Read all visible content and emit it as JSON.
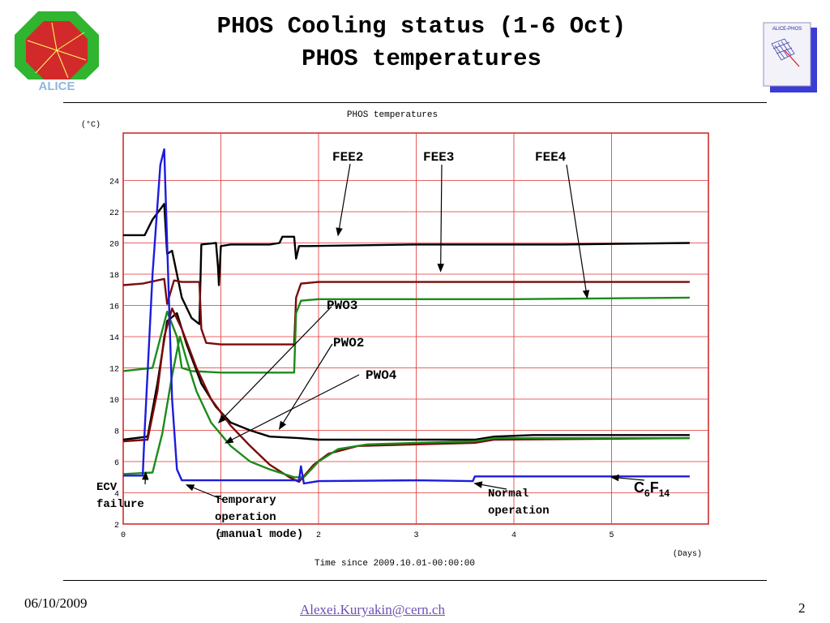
{
  "slide": {
    "title_line1": "PHOS Cooling status (1-6 Oct)",
    "title_line2": "PHOS temperatures",
    "footer_date": "06/10/2009",
    "footer_email": "Alexei.Kuryakin@cern.ch",
    "page_number": "2",
    "logo_left_text": "ALICE",
    "logo_right_text": "ALICE-PHOS"
  },
  "colors": {
    "black": "#000000",
    "maroon": "#7a0a0a",
    "green": "#1a8c1a",
    "blue": "#1c1cdd",
    "grid": "#e03030"
  },
  "chart_data": {
    "type": "line",
    "title": "PHOS temperatures",
    "xlabel": "Time since 2009.10.01-00:00:00",
    "xunit": "(Days)",
    "ylabel": "(°C)",
    "xlim": [
      0,
      6
    ],
    "ylim": [
      0,
      26
    ],
    "xticks": [
      "0",
      "1",
      "2",
      "3",
      "4",
      "5"
    ],
    "yticks": [
      "2",
      "4",
      "6",
      "8",
      "10",
      "12",
      "14",
      "16",
      "18",
      "20",
      "22",
      "24"
    ],
    "grid": true,
    "series": [
      {
        "name": "FEE2",
        "color": "black",
        "points": [
          [
            0,
            20.5
          ],
          [
            0.22,
            20.5
          ],
          [
            0.3,
            21.5
          ],
          [
            0.42,
            22.5
          ],
          [
            0.45,
            19.3
          ],
          [
            0.5,
            19.5
          ],
          [
            0.6,
            16.5
          ],
          [
            0.7,
            15.2
          ],
          [
            0.78,
            14.8
          ],
          [
            0.8,
            19.9
          ],
          [
            0.95,
            20
          ],
          [
            0.97,
            18.5
          ],
          [
            0.98,
            17.3
          ],
          [
            1.0,
            19.8
          ],
          [
            1.1,
            19.9
          ],
          [
            1.5,
            19.9
          ],
          [
            1.6,
            20
          ],
          [
            1.63,
            20.4
          ],
          [
            1.75,
            20.4
          ],
          [
            1.77,
            19
          ],
          [
            1.8,
            19.8
          ],
          [
            1.9,
            19.8
          ],
          [
            3.0,
            19.9
          ],
          [
            4.5,
            19.9
          ],
          [
            5.8,
            20
          ]
        ]
      },
      {
        "name": "FEE3",
        "color": "maroon",
        "points": [
          [
            0,
            17.3
          ],
          [
            0.2,
            17.4
          ],
          [
            0.42,
            17.7
          ],
          [
            0.45,
            16.1
          ],
          [
            0.52,
            17.6
          ],
          [
            0.6,
            17.5
          ],
          [
            0.78,
            17.5
          ],
          [
            0.8,
            14.5
          ],
          [
            0.85,
            13.6
          ],
          [
            1.0,
            13.5
          ],
          [
            1.75,
            13.5
          ],
          [
            1.77,
            16.5
          ],
          [
            1.82,
            17.4
          ],
          [
            2.0,
            17.5
          ],
          [
            4.0,
            17.5
          ],
          [
            5.8,
            17.5
          ]
        ]
      },
      {
        "name": "FEE4",
        "color": "green",
        "points": [
          [
            0,
            11.8
          ],
          [
            0.3,
            12
          ],
          [
            0.45,
            15.6
          ],
          [
            0.55,
            14
          ],
          [
            0.6,
            12
          ],
          [
            0.7,
            11.8
          ],
          [
            1.0,
            11.7
          ],
          [
            1.75,
            11.7
          ],
          [
            1.77,
            15.5
          ],
          [
            1.82,
            16.3
          ],
          [
            2.0,
            16.4
          ],
          [
            4.0,
            16.4
          ],
          [
            5.8,
            16.5
          ]
        ]
      },
      {
        "name": "PWO3",
        "color": "black",
        "points": [
          [
            0,
            7.4
          ],
          [
            0.25,
            7.6
          ],
          [
            0.35,
            11
          ],
          [
            0.45,
            15
          ],
          [
            0.55,
            15.5
          ],
          [
            0.65,
            13.5
          ],
          [
            0.8,
            11
          ],
          [
            0.95,
            9.5
          ],
          [
            1.1,
            8.5
          ],
          [
            1.3,
            8
          ],
          [
            1.5,
            7.6
          ],
          [
            1.8,
            7.5
          ],
          [
            2.0,
            7.4
          ],
          [
            3.6,
            7.4
          ],
          [
            3.8,
            7.6
          ],
          [
            4.2,
            7.7
          ],
          [
            5.8,
            7.7
          ]
        ]
      },
      {
        "name": "PWO2",
        "color": "maroon",
        "points": [
          [
            0,
            7.3
          ],
          [
            0.25,
            7.4
          ],
          [
            0.35,
            10.5
          ],
          [
            0.42,
            14
          ],
          [
            0.5,
            15.8
          ],
          [
            0.6,
            14.5
          ],
          [
            0.75,
            12
          ],
          [
            0.9,
            10
          ],
          [
            1.1,
            8.3
          ],
          [
            1.3,
            7
          ],
          [
            1.5,
            5.8
          ],
          [
            1.7,
            5
          ],
          [
            1.8,
            4.7
          ],
          [
            1.95,
            5.8
          ],
          [
            2.1,
            6.5
          ],
          [
            2.4,
            7
          ],
          [
            3.0,
            7.1
          ],
          [
            3.6,
            7.2
          ],
          [
            3.8,
            7.4
          ],
          [
            5.8,
            7.5
          ]
        ]
      },
      {
        "name": "PWO4",
        "color": "green",
        "points": [
          [
            0,
            5.2
          ],
          [
            0.3,
            5.3
          ],
          [
            0.4,
            7.8
          ],
          [
            0.5,
            11.5
          ],
          [
            0.58,
            14
          ],
          [
            0.65,
            12.5
          ],
          [
            0.75,
            10.5
          ],
          [
            0.9,
            8.5
          ],
          [
            1.1,
            7
          ],
          [
            1.3,
            6
          ],
          [
            1.5,
            5.5
          ],
          [
            1.75,
            5
          ],
          [
            1.85,
            5
          ],
          [
            2.0,
            6
          ],
          [
            2.2,
            6.8
          ],
          [
            2.5,
            7.1
          ],
          [
            3.0,
            7.2
          ],
          [
            3.6,
            7.3
          ],
          [
            3.8,
            7.5
          ],
          [
            5.8,
            7.5
          ]
        ]
      },
      {
        "name": "C6F14",
        "color": "blue",
        "points": [
          [
            0,
            5.1
          ],
          [
            0.2,
            5.1
          ],
          [
            0.22,
            8
          ],
          [
            0.3,
            18
          ],
          [
            0.38,
            25
          ],
          [
            0.42,
            26
          ],
          [
            0.45,
            20
          ],
          [
            0.5,
            10
          ],
          [
            0.55,
            5.5
          ],
          [
            0.6,
            4.8
          ],
          [
            0.7,
            4.8
          ],
          [
            1.5,
            4.8
          ],
          [
            1.8,
            4.8
          ],
          [
            1.82,
            5.7
          ],
          [
            1.85,
            4.6
          ],
          [
            2.0,
            4.75
          ],
          [
            3.0,
            4.8
          ],
          [
            3.58,
            4.75
          ],
          [
            3.6,
            5.05
          ],
          [
            5.8,
            5.05
          ]
        ]
      }
    ],
    "annotations": [
      {
        "text": "FEE2",
        "tip": [
          2.2,
          20.5
        ]
      },
      {
        "text": "FEE3",
        "tip": [
          3.25,
          18.2
        ]
      },
      {
        "text": "FEE4",
        "tip": [
          4.75,
          16.5
        ]
      },
      {
        "text": "PWO3",
        "tip": [
          0.98,
          8.5
        ]
      },
      {
        "text": "PWO2",
        "tip": [
          1.6,
          8.1
        ]
      },
      {
        "text": "PWO4",
        "tip": [
          1.05,
          7.2
        ]
      },
      {
        "text": "ECV failure",
        "tip": [
          0.23,
          5.3
        ]
      },
      {
        "text": "Temporary operation (manual mode)",
        "tip": [
          0.65,
          4.5
        ]
      },
      {
        "text": "Normal operation",
        "tip": [
          3.6,
          4.6
        ]
      },
      {
        "text": "C6F14",
        "tip": [
          5.0,
          5.0
        ]
      }
    ]
  }
}
